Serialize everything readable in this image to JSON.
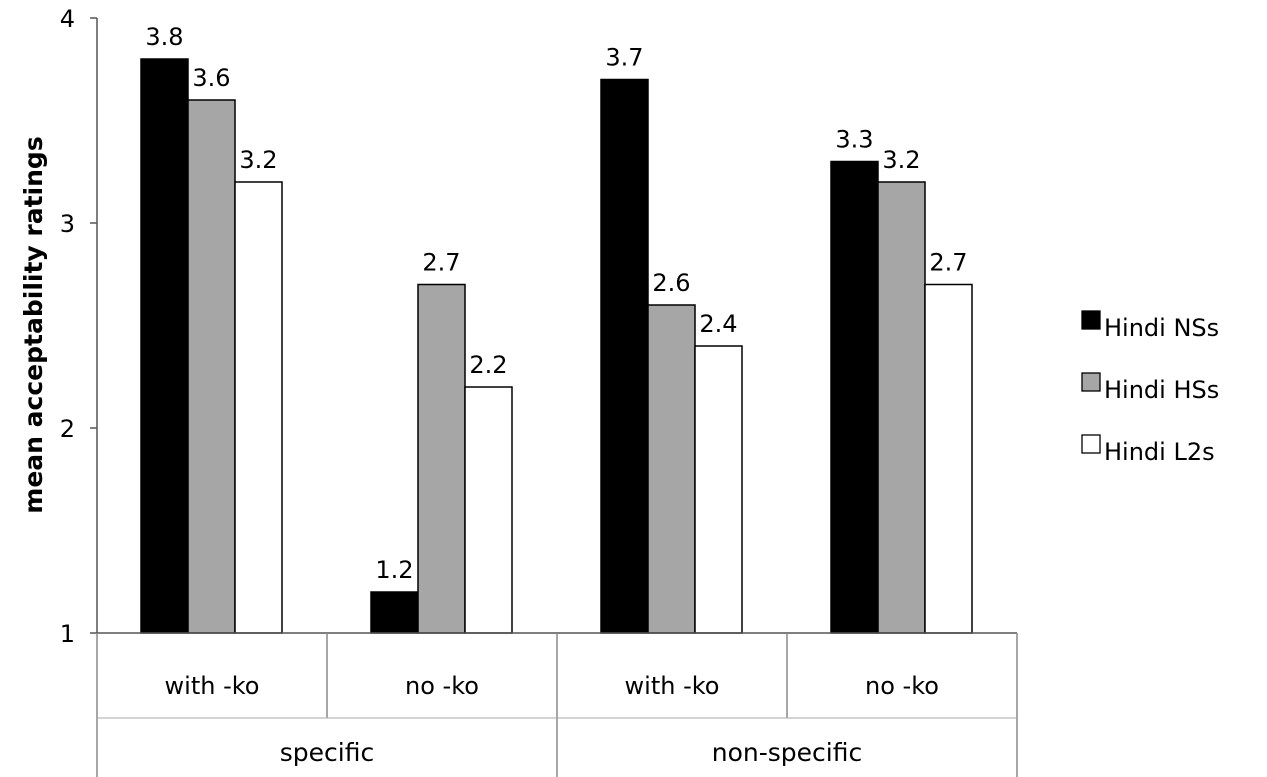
{
  "chart_data": {
    "type": "bar",
    "title": "",
    "xlabel": "",
    "ylabel": "mean acceptability ratings",
    "ylim": [
      1,
      4
    ],
    "yticks": [
      "1",
      "2",
      "3",
      "4"
    ],
    "grid": false,
    "legend_position": "right",
    "groups": [
      {
        "label": "specific",
        "categories": [
          "with -ko",
          "no -ko"
        ]
      },
      {
        "label": "non-specific",
        "categories": [
          "with -ko",
          "no -ko"
        ]
      }
    ],
    "categories": [
      "with -ko",
      "no -ko",
      "with -ko",
      "no -ko"
    ],
    "series": [
      {
        "name": "Hindi NSs",
        "color": "#000000",
        "values": [
          3.8,
          1.2,
          3.7,
          3.3
        ],
        "labels": [
          "3.8",
          "1.2",
          "3.7",
          "3.3"
        ]
      },
      {
        "name": "Hindi HSs",
        "color": "#a6a6a6",
        "values": [
          3.6,
          2.7,
          2.6,
          3.2
        ],
        "labels": [
          "3.6",
          "2.7",
          "2.6",
          "3.2"
        ]
      },
      {
        "name": "Hindi L2s",
        "color": "#ffffff",
        "values": [
          3.2,
          2.2,
          2.4,
          2.7
        ],
        "labels": [
          "3.2",
          "2.2",
          "2.4",
          "2.7"
        ]
      }
    ]
  }
}
